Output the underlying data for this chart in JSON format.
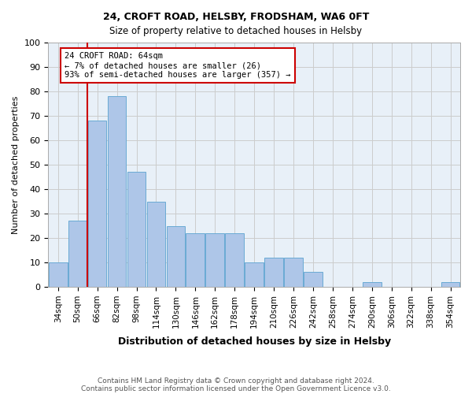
{
  "title1": "24, CROFT ROAD, HELSBY, FRODSHAM, WA6 0FT",
  "title2": "Size of property relative to detached houses in Helsby",
  "xlabel": "Distribution of detached houses by size in Helsby",
  "ylabel": "Number of detached properties",
  "categories": [
    "34sqm",
    "50sqm",
    "66sqm",
    "82sqm",
    "98sqm",
    "114sqm",
    "130sqm",
    "146sqm",
    "162sqm",
    "178sqm",
    "194sqm",
    "210sqm",
    "226sqm",
    "242sqm",
    "258sqm",
    "274sqm",
    "290sqm",
    "306sqm",
    "322sqm",
    "338sqm",
    "354sqm"
  ],
  "values": [
    10,
    27,
    68,
    78,
    47,
    35,
    25,
    22,
    22,
    22,
    10,
    12,
    12,
    6,
    0,
    0,
    2,
    0,
    0,
    0,
    2
  ],
  "bar_color": "#aec6e8",
  "bar_edge_color": "#6aaad4",
  "vline_x": 1.5,
  "annotation_text": "24 CROFT ROAD: 64sqm\n← 7% of detached houses are smaller (26)\n93% of semi-detached houses are larger (357) →",
  "annotation_box_color": "#ffffff",
  "annotation_box_edge_color": "#cc0000",
  "vline_color": "#cc0000",
  "ylim": [
    0,
    100
  ],
  "grid_color": "#cccccc",
  "background_color": "#e8f0f8",
  "footer1": "Contains HM Land Registry data © Crown copyright and database right 2024.",
  "footer2": "Contains public sector information licensed under the Open Government Licence v3.0."
}
